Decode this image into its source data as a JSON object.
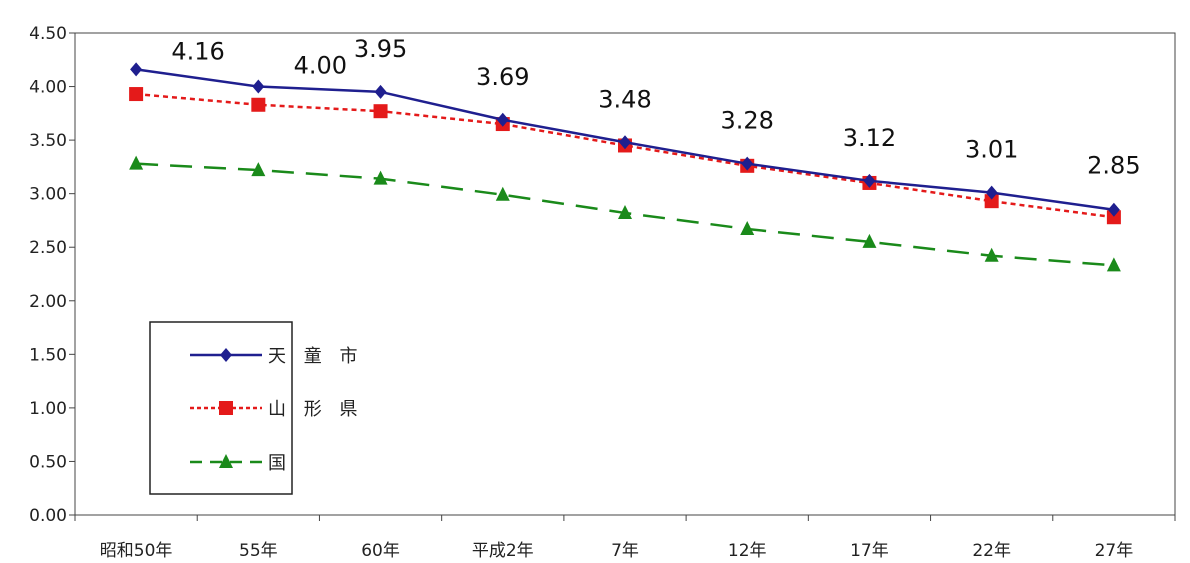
{
  "chart_data": {
    "type": "line",
    "categories": [
      "昭和50年",
      "55年",
      "60年",
      "平成2年",
      "7年",
      "12年",
      "17年",
      "22年",
      "27年"
    ],
    "ylim": [
      0,
      4.5
    ],
    "yticks": [
      "0.00",
      "0.50",
      "1.00",
      "1.50",
      "2.00",
      "2.50",
      "3.00",
      "3.50",
      "4.00",
      "4.50"
    ],
    "grid": false,
    "legend_position": "bottom-left",
    "series": [
      {
        "name": "天 童 市",
        "color": "#1f1f8f",
        "line_style": "solid",
        "marker": "diamond",
        "values": [
          4.16,
          4.0,
          3.95,
          3.69,
          3.48,
          3.28,
          3.12,
          3.01,
          2.85
        ],
        "data_labels": [
          "4.16",
          "4.00",
          "3.95",
          "3.69",
          "3.48",
          "3.28",
          "3.12",
          "3.01",
          "2.85"
        ]
      },
      {
        "name": "山 形 県",
        "color": "#e41a1a",
        "line_style": "dotted",
        "marker": "square",
        "values": [
          3.93,
          3.83,
          3.77,
          3.65,
          3.45,
          3.26,
          3.1,
          2.93,
          2.78
        ]
      },
      {
        "name": "国",
        "color": "#1a8a1a",
        "line_style": "dashed",
        "marker": "triangle",
        "values": [
          3.28,
          3.22,
          3.14,
          2.99,
          2.82,
          2.67,
          2.55,
          2.42,
          2.33
        ]
      }
    ]
  }
}
